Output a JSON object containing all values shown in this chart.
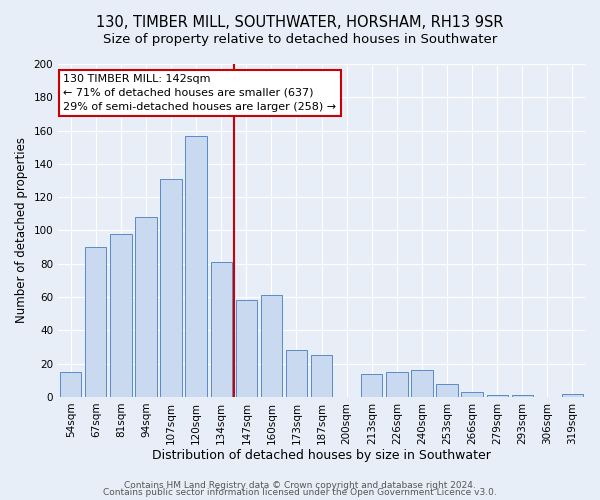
{
  "title": "130, TIMBER MILL, SOUTHWATER, HORSHAM, RH13 9SR",
  "subtitle": "Size of property relative to detached houses in Southwater",
  "xlabel": "Distribution of detached houses by size in Southwater",
  "ylabel": "Number of detached properties",
  "bar_labels": [
    "54sqm",
    "67sqm",
    "81sqm",
    "94sqm",
    "107sqm",
    "120sqm",
    "134sqm",
    "147sqm",
    "160sqm",
    "173sqm",
    "187sqm",
    "200sqm",
    "213sqm",
    "226sqm",
    "240sqm",
    "253sqm",
    "266sqm",
    "279sqm",
    "293sqm",
    "306sqm",
    "319sqm"
  ],
  "bar_values": [
    15,
    90,
    98,
    108,
    131,
    157,
    81,
    58,
    61,
    28,
    25,
    0,
    14,
    15,
    16,
    8,
    3,
    1,
    1,
    0,
    2
  ],
  "bar_color": "#c9d9f0",
  "bar_edge_color": "#5b8ac9",
  "vline_x": 6.5,
  "vline_color": "#cc0000",
  "annotation_line1": "130 TIMBER MILL: 142sqm",
  "annotation_line2": "← 71% of detached houses are smaller (637)",
  "annotation_line3": "29% of semi-detached houses are larger (258) →",
  "annotation_box_color": "#ffffff",
  "annotation_box_edge": "#cc0000",
  "ylim": [
    0,
    200
  ],
  "yticks": [
    0,
    20,
    40,
    60,
    80,
    100,
    120,
    140,
    160,
    180,
    200
  ],
  "footnote1": "Contains HM Land Registry data © Crown copyright and database right 2024.",
  "footnote2": "Contains public sector information licensed under the Open Government Licence v3.0.",
  "background_color": "#e8eef8",
  "plot_background": "#e8eef8",
  "title_fontsize": 10.5,
  "subtitle_fontsize": 9.5,
  "xlabel_fontsize": 9,
  "ylabel_fontsize": 8.5,
  "tick_fontsize": 7.5,
  "annotation_fontsize": 8,
  "footnote_fontsize": 6.5
}
